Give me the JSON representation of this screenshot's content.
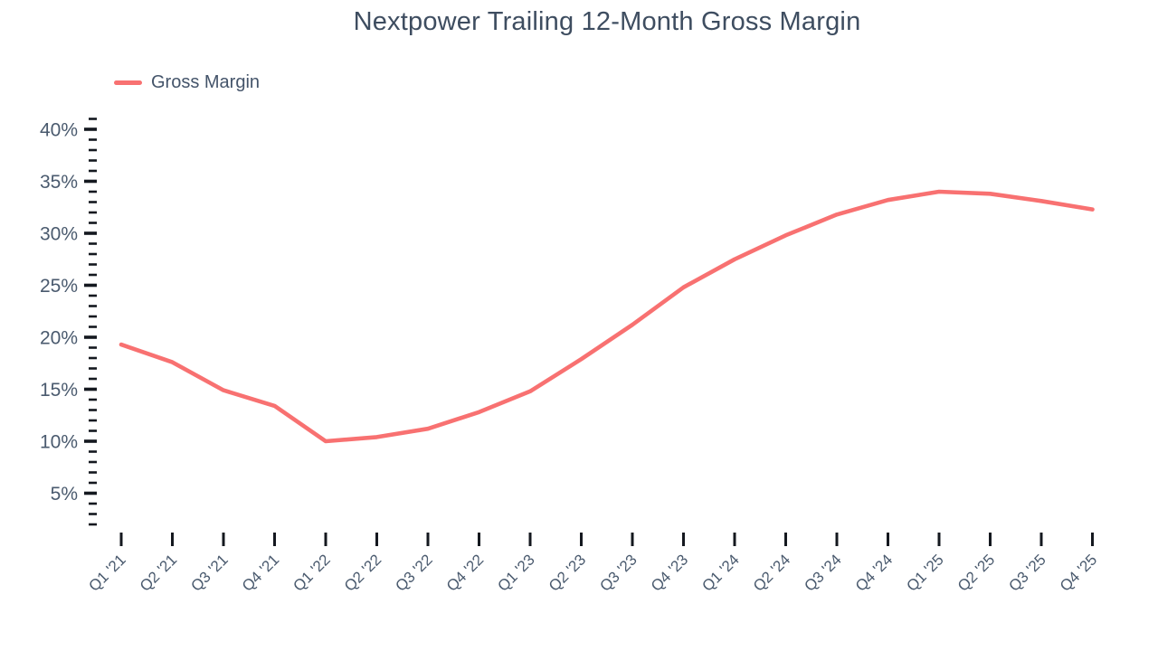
{
  "chart": {
    "title": "Nextpower Trailing 12-Month Gross Margin",
    "legend_label": "Gross Margin",
    "colors": {
      "line": "#f87171",
      "tick": "#14181f",
      "axis_text": "#4a5a6e",
      "title_text": "#3e4d60",
      "background": "#ffffff"
    }
  },
  "chart_data": {
    "type": "line",
    "title": "Nextpower Trailing 12-Month Gross Margin",
    "x": [
      "Q1 '21",
      "Q2 '21",
      "Q3 '21",
      "Q4 '21",
      "Q1 '22",
      "Q2 '22",
      "Q3 '22",
      "Q4 '22",
      "Q1 '23",
      "Q2 '23",
      "Q3 '23",
      "Q4 '23",
      "Q1 '24",
      "Q2 '24",
      "Q3 '24",
      "Q4 '24",
      "Q1 '25",
      "Q2 '25",
      "Q3 '25",
      "Q4 '25"
    ],
    "series": [
      {
        "name": "Gross Margin",
        "color": "#f87171",
        "values": [
          19.3,
          17.6,
          14.9,
          13.4,
          10.0,
          10.4,
          11.2,
          12.8,
          14.8,
          17.9,
          21.2,
          24.8,
          27.5,
          29.8,
          31.8,
          33.2,
          34.0,
          33.8,
          33.1,
          32.3
        ]
      }
    ],
    "xlabel": "",
    "ylabel": "",
    "y_unit": "%",
    "ylim": [
      2,
      41
    ],
    "y_major_ticks": [
      5,
      10,
      15,
      20,
      25,
      30,
      35,
      40
    ],
    "y_minor_step": 1,
    "grid": false,
    "legend_position": "top-left"
  }
}
